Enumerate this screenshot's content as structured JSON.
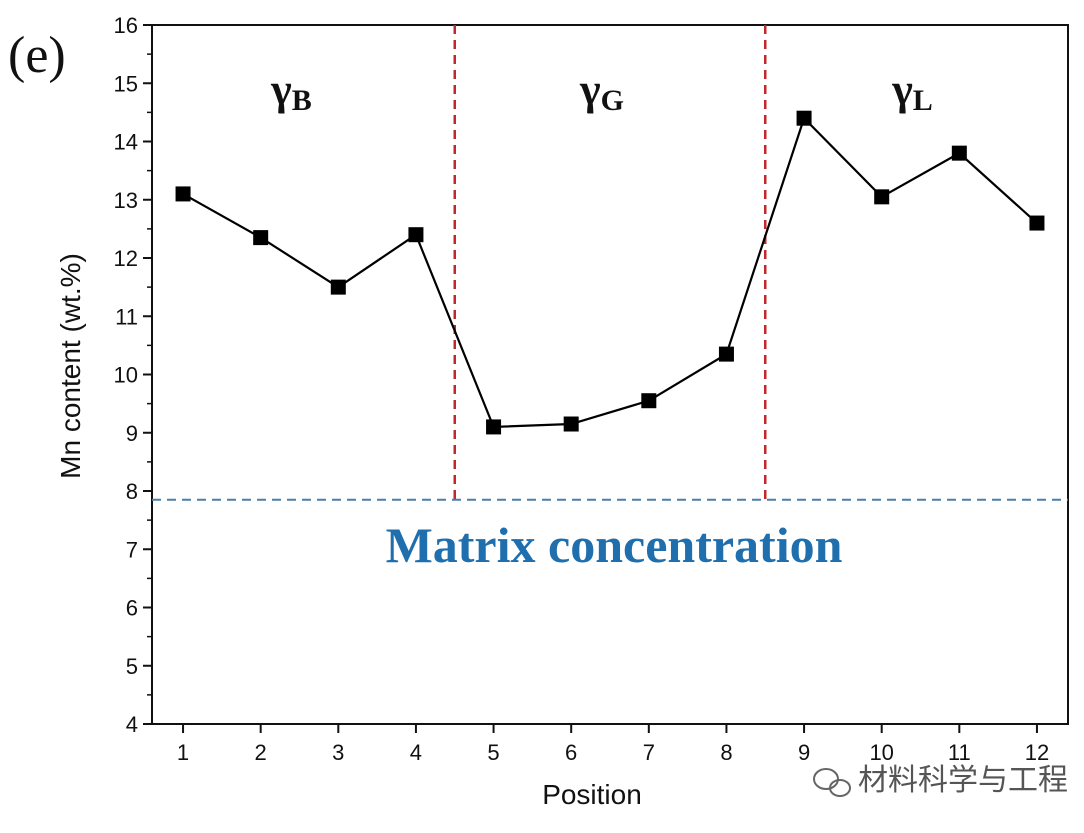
{
  "chart_data": {
    "type": "line",
    "panel_label": "(e)",
    "xlabel": "Position",
    "ylabel": "Mn content (wt.%)",
    "x": [
      1,
      2,
      3,
      4,
      5,
      6,
      7,
      8,
      9,
      10,
      11,
      12
    ],
    "values": [
      13.1,
      12.35,
      11.5,
      12.4,
      9.1,
      9.15,
      9.55,
      10.35,
      14.4,
      13.05,
      13.8,
      12.6
    ],
    "xlim": [
      0.6,
      12.4
    ],
    "ylim": [
      4,
      16
    ],
    "xticks": [
      "1",
      "2",
      "3",
      "4",
      "5",
      "6",
      "7",
      "8",
      "9",
      "10",
      "11",
      "12"
    ],
    "yticks": [
      "4",
      "5",
      "6",
      "7",
      "8",
      "9",
      "10",
      "11",
      "12",
      "13",
      "14",
      "15",
      "16"
    ],
    "region_boundaries": [
      4.5,
      8.5
    ],
    "regions": [
      {
        "symbol": "γ",
        "subscript": "B",
        "center_x": 2.5
      },
      {
        "symbol": "γ",
        "subscript": "G",
        "center_x": 6.5
      },
      {
        "symbol": "γ",
        "subscript": "L",
        "center_x": 10.5
      }
    ],
    "matrix_level": 7.85,
    "matrix_label": "Matrix concentration",
    "colors": {
      "line": "#000000",
      "marker": "#000000",
      "boundary": "#c0282d",
      "matrix": "#4a7fa8",
      "matrix_text": "#1f6fae"
    }
  },
  "watermark": "材料科学与工程"
}
